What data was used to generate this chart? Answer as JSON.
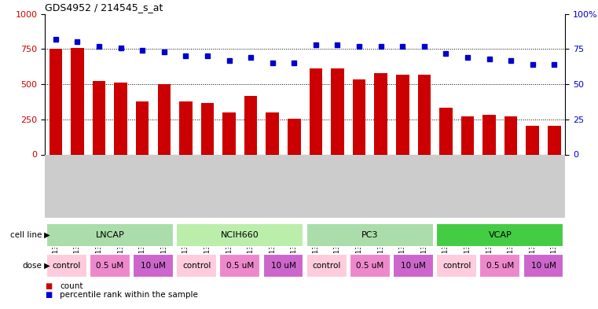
{
  "title": "GDS4952 / 214545_s_at",
  "samples": [
    "GSM1359772",
    "GSM1359773",
    "GSM1359774",
    "GSM1359775",
    "GSM1359776",
    "GSM1359777",
    "GSM1359760",
    "GSM1359761",
    "GSM1359762",
    "GSM1359763",
    "GSM1359764",
    "GSM1359765",
    "GSM1359778",
    "GSM1359779",
    "GSM1359780",
    "GSM1359781",
    "GSM1359782",
    "GSM1359783",
    "GSM1359766",
    "GSM1359767",
    "GSM1359768",
    "GSM1359769",
    "GSM1359770",
    "GSM1359771"
  ],
  "counts": [
    750,
    760,
    525,
    510,
    375,
    500,
    375,
    365,
    300,
    415,
    300,
    255,
    610,
    615,
    535,
    580,
    570,
    570,
    335,
    270,
    280,
    270,
    205,
    205
  ],
  "percentiles": [
    82,
    80,
    77,
    76,
    74,
    73,
    70,
    70,
    67,
    69,
    65,
    65,
    78,
    78,
    77,
    77,
    77,
    77,
    72,
    69,
    68,
    67,
    64,
    64
  ],
  "cell_lines": [
    {
      "name": "LNCAP",
      "start": 0,
      "end": 6,
      "color": "#aaddaa"
    },
    {
      "name": "NCIH660",
      "start": 6,
      "end": 12,
      "color": "#bbeeaa"
    },
    {
      "name": "PC3",
      "start": 12,
      "end": 18,
      "color": "#aaddaa"
    },
    {
      "name": "VCAP",
      "start": 18,
      "end": 24,
      "color": "#44cc44"
    }
  ],
  "doses": [
    {
      "name": "control",
      "start": 0,
      "end": 2,
      "color": "#ffccdd"
    },
    {
      "name": "0.5 uM",
      "start": 2,
      "end": 4,
      "color": "#ee88cc"
    },
    {
      "name": "10 uM",
      "start": 4,
      "end": 6,
      "color": "#cc66cc"
    },
    {
      "name": "control",
      "start": 6,
      "end": 8,
      "color": "#ffccdd"
    },
    {
      "name": "0.5 uM",
      "start": 8,
      "end": 10,
      "color": "#ee88cc"
    },
    {
      "name": "10 uM",
      "start": 10,
      "end": 12,
      "color": "#cc66cc"
    },
    {
      "name": "control",
      "start": 12,
      "end": 14,
      "color": "#ffccdd"
    },
    {
      "name": "0.5 uM",
      "start": 14,
      "end": 16,
      "color": "#ee88cc"
    },
    {
      "name": "10 uM",
      "start": 16,
      "end": 18,
      "color": "#cc66cc"
    },
    {
      "name": "control",
      "start": 18,
      "end": 20,
      "color": "#ffccdd"
    },
    {
      "name": "0.5 uM",
      "start": 20,
      "end": 22,
      "color": "#ee88cc"
    },
    {
      "name": "10 uM",
      "start": 22,
      "end": 24,
      "color": "#cc66cc"
    }
  ],
  "bar_color": "#CC0000",
  "dot_color": "#0000CC",
  "ylim_left": [
    0,
    1000
  ],
  "ylim_right": [
    0,
    100
  ],
  "yticks_left": [
    0,
    250,
    500,
    750,
    1000
  ],
  "yticks_right": [
    0,
    25,
    50,
    75,
    100
  ],
  "grid_lines": [
    250,
    500,
    750
  ],
  "cell_line_bg": "#cccccc",
  "xtick_bg": "#cccccc"
}
